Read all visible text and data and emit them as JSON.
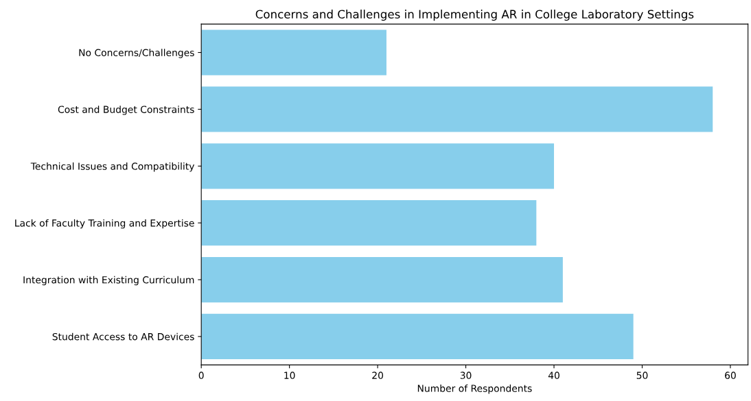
{
  "chart_data": {
    "type": "bar",
    "orientation": "horizontal",
    "title": "Concerns and Challenges in Implementing AR in College Laboratory Settings",
    "xlabel": "Number of Respondents",
    "categories": [
      "No Concerns/Challenges",
      "Cost and Budget Constraints",
      "Technical Issues and Compatibility",
      "Lack of Faculty Training and Expertise",
      "Integration with Existing Curriculum",
      "Student Access to AR Devices"
    ],
    "values": [
      21,
      58,
      40,
      38,
      41,
      49
    ],
    "color": "#87ceeb",
    "xlim": [
      0,
      62
    ],
    "xticks": [
      0,
      10,
      20,
      30,
      40,
      50,
      60
    ],
    "grid": false,
    "legend": false
  }
}
